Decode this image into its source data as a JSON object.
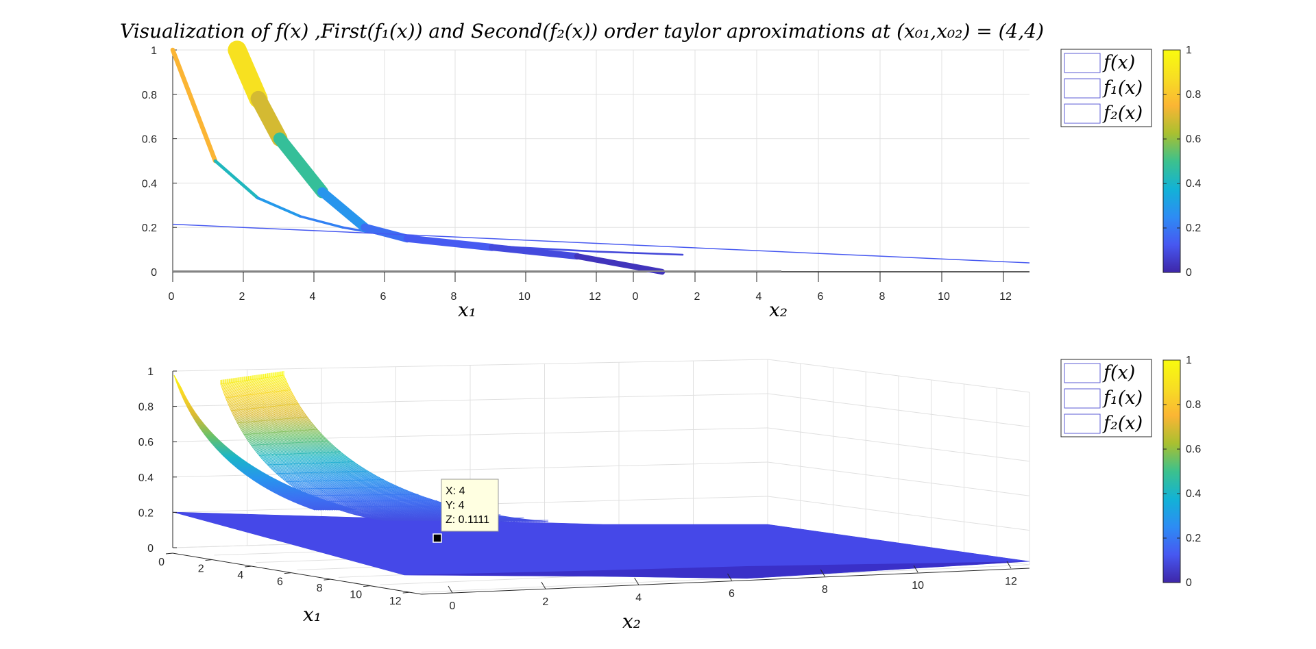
{
  "figure": {
    "title": "Visualization of f(x) ,First(f₁(x)) and Second(f₂(x)) order taylor aproximations at (x₀₁,x₀₂) = (4,4)"
  },
  "top_plot": {
    "view": "2-D side view",
    "z_ticks": [
      "0",
      "0.2",
      "0.4",
      "0.6",
      "0.8",
      "1"
    ],
    "x1_ticks": [
      "0",
      "2",
      "4",
      "6",
      "8",
      "10",
      "12"
    ],
    "x2_ticks": [
      "0",
      "2",
      "4",
      "6",
      "8",
      "10",
      "12"
    ],
    "x1_label": "x₁",
    "x2_label": "x₂",
    "legend": [
      "f(x)",
      "f₁(x)",
      "f₂(x)"
    ],
    "colorbar_ticks": [
      "0",
      "0.2",
      "0.4",
      "0.6",
      "0.8",
      "1"
    ]
  },
  "bottom_plot": {
    "view": "3-D perspective",
    "z_ticks": [
      "0",
      "0.2",
      "0.4",
      "0.6",
      "0.8",
      "1"
    ],
    "x1_ticks": [
      "0",
      "2",
      "4",
      "6",
      "8",
      "10",
      "12"
    ],
    "x2_ticks": [
      "0",
      "2",
      "4",
      "6",
      "8",
      "10",
      "12"
    ],
    "x1_label": "x₁",
    "x2_label": "x₂",
    "legend": [
      "f(x)",
      "f₁(x)",
      "f₂(x)"
    ],
    "colorbar_ticks": [
      "0",
      "0.2",
      "0.4",
      "0.6",
      "0.8",
      "1"
    ],
    "datatip": {
      "x": "X: 4",
      "y": "Y: 4",
      "z": "Z: 0.1111"
    }
  },
  "colors": {
    "colormap": [
      "#3e26a8",
      "#4758f1",
      "#2d8cf4",
      "#12b2d6",
      "#3cc18d",
      "#a9c030",
      "#fbb534",
      "#f7de23",
      "#f9fb0e"
    ],
    "approx_line": "#4658f0",
    "grid": "#e0e0e0",
    "axis": "#262626",
    "legend_swatch": "#5b5bd6"
  },
  "chart_data": [
    {
      "type": "line",
      "title": "Visualization of f(x) ,First(f₁(x)) and Second(f₂(x)) order taylor aproximations at (x₀₁,x₀₂) = (4,4)",
      "view": "2-D projection of surfaces onto x₁/x₂ vs z",
      "xlabel": "x₁ / x₂",
      "ylabel": "",
      "ylim": [
        0,
        1
      ],
      "xlim": [
        0,
        12
      ],
      "grid": true,
      "legend_position": "outside-top-right",
      "series": [
        {
          "name": "f(x)",
          "x": [
            0,
            1,
            2,
            3,
            4,
            5,
            6,
            8,
            10,
            12
          ],
          "values": [
            1.0,
            0.5,
            0.333,
            0.25,
            0.2,
            0.1667,
            0.1429,
            0.1111,
            0.0909,
            0.0769
          ]
        },
        {
          "name": "f₂(x)",
          "x": [
            2,
            2.5,
            3,
            4,
            5,
            6,
            8,
            10,
            12
          ],
          "values": [
            1.0,
            0.78,
            0.6,
            0.36,
            0.2,
            0.15,
            0.11,
            0.07,
            0.0
          ]
        },
        {
          "name": "f₁(x)",
          "x": [
            0,
            4,
            8,
            12
          ],
          "values": [
            0.2143,
            0.1111,
            0.0741,
            0.04
          ]
        }
      ],
      "colorbar": {
        "range": [
          0,
          1
        ],
        "ticks": [
          0,
          0.2,
          0.4,
          0.6,
          0.8,
          1
        ]
      }
    },
    {
      "type": "surface",
      "view": "3-D perspective",
      "xlabel": "x₁",
      "ylabel": "x₂",
      "zlim": [
        0,
        1
      ],
      "grid": true,
      "legend_position": "outside-top-right",
      "datatip": {
        "x": 4,
        "y": 4,
        "z": 0.1111
      },
      "colorbar": {
        "range": [
          0,
          1
        ],
        "ticks": [
          0,
          0.2,
          0.4,
          0.6,
          0.8,
          1
        ]
      }
    }
  ]
}
